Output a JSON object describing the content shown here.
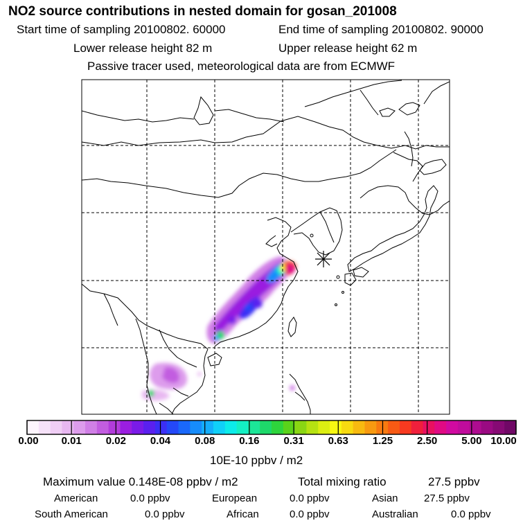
{
  "header": {
    "title": "NO2 source contributions in nested domain for gosan_201008",
    "start_label": "Start time of sampling 20100802. 60000",
    "end_label": "End time of sampling 20100802. 90000",
    "lower_label": "Lower release height   82 m",
    "upper_label": "Upper release height   62 m",
    "tracer_note": "Passive tracer used, meteorological data are from ECMWF"
  },
  "colorbar": {
    "ticks": [
      "0.00",
      "0.01",
      "0.02",
      "0.04",
      "0.08",
      "0.16",
      "0.31",
      "0.63",
      "1.25",
      "2.50",
      "5.00",
      "10.00"
    ],
    "unit": "10E-10 ppbv / m2",
    "colors": [
      "#fdf5fd",
      "#f6e2f9",
      "#f0cef5",
      "#e8b7f1",
      "#dd9cec",
      "#d07fe6",
      "#c25de0",
      "#b23cdb",
      "#9a1ee0",
      "#7a1be8",
      "#5a20ef",
      "#3b2ff5",
      "#2448f8",
      "#1a68fa",
      "#168cfb",
      "#14aefb",
      "#10d0f8",
      "#0cecea",
      "#14f0c4",
      "#1ce698",
      "#1ed86a",
      "#2ed43c",
      "#5ad21a",
      "#8ad613",
      "#b6e212",
      "#dcee12",
      "#f8f812",
      "#f8da10",
      "#f8ba10",
      "#f89a10",
      "#f87a10",
      "#f85a14",
      "#f83a20",
      "#f0203c",
      "#e81060",
      "#e00a84",
      "#d00aa0",
      "#c00c9c",
      "#ae0c90",
      "#9a0a82",
      "#860a74",
      "#700866"
    ]
  },
  "stats": {
    "max_label": "Maximum value  0.148E-08 ppbv / m2",
    "total_label": "Total mixing ratio",
    "total_value": "27.5 ppbv"
  },
  "regions": [
    {
      "name": "American",
      "value": "0.0 ppbv"
    },
    {
      "name": "European",
      "value": "0.0 ppbv"
    },
    {
      "name": "Asian",
      "value": "27.5 ppbv"
    },
    {
      "name": "South American",
      "value": "0.0 ppbv"
    },
    {
      "name": "African",
      "value": "0.0 ppbv"
    },
    {
      "name": "Australian",
      "value": "0.0 ppbv"
    }
  ]
}
